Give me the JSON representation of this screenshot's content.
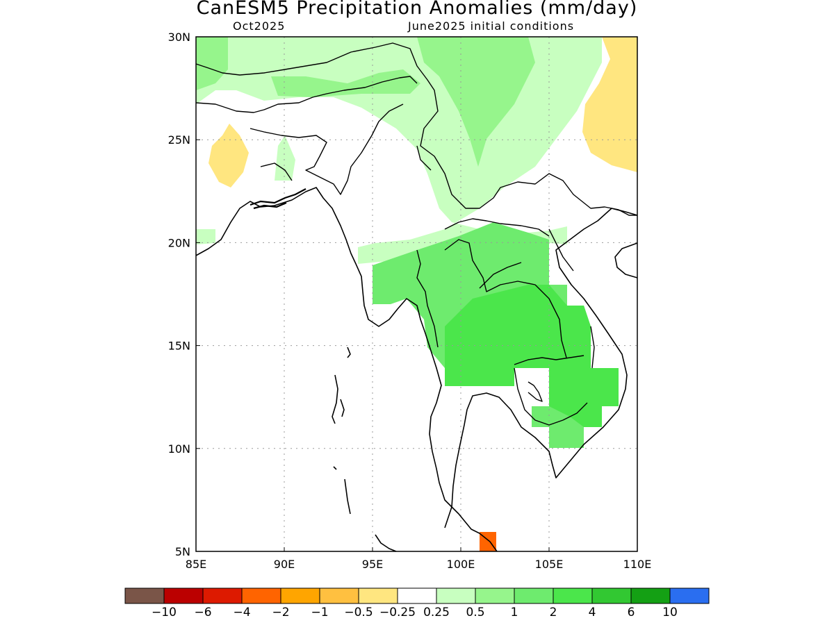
{
  "title": "CanESM5 Precipitation Anomalies (mm/day)",
  "subtitle_left": "Oct2025",
  "subtitle_right": "June2025 initial conditions",
  "axes": {
    "x_ticks": [
      "85E",
      "90E",
      "95E",
      "100E",
      "105E",
      "110E"
    ],
    "y_ticks": [
      "30N",
      "25N",
      "20N",
      "15N",
      "10N",
      "5N"
    ],
    "lon_range": [
      85,
      110
    ],
    "lat_range": [
      5,
      30
    ],
    "grid": true
  },
  "colorbar": {
    "colors": [
      "#7a5548",
      "#bb0000",
      "#dd1a00",
      "#ff6400",
      "#ffa500",
      "#ffc040",
      "#ffe680",
      "#ffffff",
      "#c8ffc0",
      "#96f58c",
      "#6eeb6e",
      "#4be64b",
      "#32c832",
      "#14a014",
      "#2a6ef0"
    ],
    "labels": [
      "−10",
      "−6",
      "−4",
      "−2",
      "−1",
      "−0.5",
      "−0.25",
      "0.25",
      "0.5",
      "1",
      "2",
      "4",
      "6",
      "10"
    ]
  },
  "legend_values": {
    "colors": {
      "pale_green": "#c8ffc0",
      "light_green": "#96f58c",
      "mid_green": "#6eeb6e",
      "green": "#4be64b",
      "yellow": "#ffe680",
      "orange": "#ff6400"
    }
  }
}
